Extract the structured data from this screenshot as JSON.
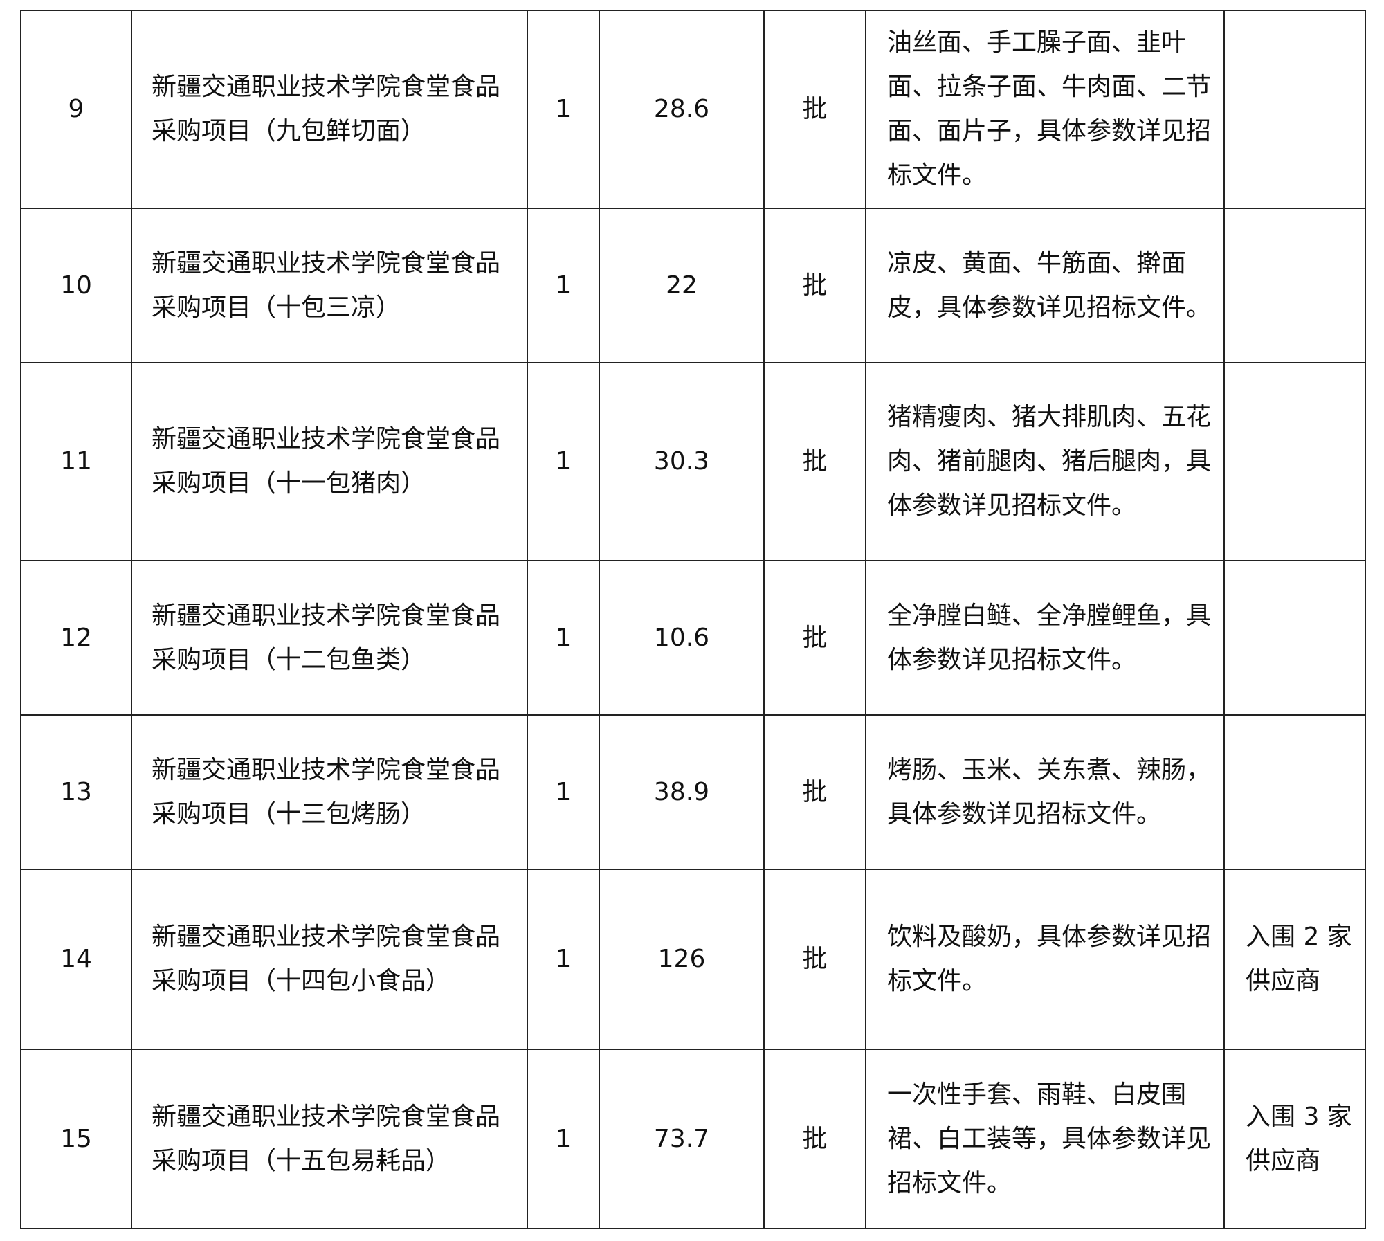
{
  "rows": [
    {
      "no": "9",
      "name": "新疆交通职业技术学院食堂食品采购项目（九包鲜切面）",
      "qty": "1",
      "budget": "28.6",
      "unit": "批",
      "desc": "油丝面、手工臊子面、韭叶面、拉条子面、牛肉面、二节面、面片子，具体参数详见招标文件。",
      "note": ""
    },
    {
      "no": "10",
      "name": "新疆交通职业技术学院食堂食品采购项目（十包三凉）",
      "qty": "1",
      "budget": "22",
      "unit": "批",
      "desc": "凉皮、黄面、牛筋面、擀面皮，具体参数详见招标文件。",
      "note": ""
    },
    {
      "no": "11",
      "name": "新疆交通职业技术学院食堂食品采购项目（十一包猪肉）",
      "qty": "1",
      "budget": "30.3",
      "unit": "批",
      "desc": "猪精瘦肉、猪大排肌肉、五花肉、猪前腿肉、猪后腿肉，具体参数详见招标文件。",
      "note": ""
    },
    {
      "no": "12",
      "name": "新疆交通职业技术学院食堂食品采购项目（十二包鱼类）",
      "qty": "1",
      "budget": "10.6",
      "unit": "批",
      "desc": "全净膛白鲢、全净膛鲤鱼，具体参数详见招标文件。",
      "note": ""
    },
    {
      "no": "13",
      "name": "新疆交通职业技术学院食堂食品采购项目（十三包烤肠）",
      "qty": "1",
      "budget": "38.9",
      "unit": "批",
      "desc": "烤肠、玉米、关东煮、辣肠，具体参数详见招标文件。",
      "note": ""
    },
    {
      "no": "14",
      "name": "新疆交通职业技术学院食堂食品采购项目（十四包小食品）",
      "qty": "1",
      "budget": "126",
      "unit": "批",
      "desc": "饮料及酸奶，具体参数详见招标文件。",
      "note": "入围 2 家供应商"
    },
    {
      "no": "15",
      "name": "新疆交通职业技术学院食堂食品采购项目（十五包易耗品）",
      "qty": "1",
      "budget": "73.7",
      "unit": "批",
      "desc": "一次性手套、雨鞋、白皮围裙、白工装等，具体参数详见招标文件。",
      "note": "入围 3 家供应商"
    }
  ]
}
